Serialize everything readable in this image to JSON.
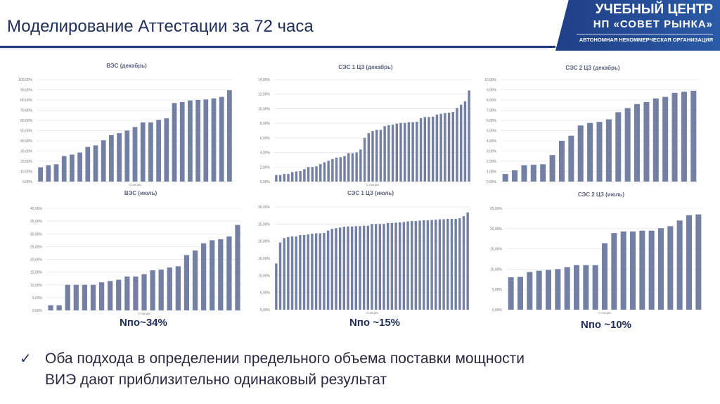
{
  "header": {
    "title": "Моделирование Аттестации за 72 часа"
  },
  "logo": {
    "line1": "УЧЕБНЫЙ ЦЕНТР",
    "line2": "НП «СОВЕТ РЫНКА»",
    "line3": "АВТОНОМНАЯ НЕКОММЕРЧЕСКАЯ ОРГАНИЗАЦИЯ"
  },
  "colors": {
    "bar": "#7480a3",
    "accent": "#1f3a7a",
    "grid": "#e3e6ee"
  },
  "labels": {
    "n1": "Nпо~34%",
    "n2": "Nпо ~15%",
    "n3": "Nпо ~10%"
  },
  "bottom": {
    "icon": "check-icon",
    "line1": "Оба подхода в определении предельного объема поставки мощности",
    "line2": "ВИЭ дают приблизительно одинаковый результат"
  },
  "chart_data": [
    {
      "type": "bar",
      "title": "ВЭС (декабрь)",
      "xlabel": "Станции",
      "ylabel": "",
      "ylim": [
        0,
        100
      ],
      "ystep": 10,
      "grid": true,
      "values": [
        14,
        16,
        17,
        25,
        26.5,
        28.5,
        34,
        35.5,
        40.5,
        45.5,
        47.5,
        50,
        53.5,
        58,
        58,
        60.5,
        62,
        77,
        78,
        79.5,
        80,
        80.5,
        81.5,
        83,
        89.5
      ]
    },
    {
      "type": "bar",
      "title": "СЭС 1 ЦЗ (декабрь)",
      "xlabel": "Станции",
      "ylabel": "",
      "ylim": [
        0,
        14
      ],
      "ystep": 2,
      "grid": true,
      "values": [
        0.9,
        0.9,
        1.05,
        1.05,
        1.3,
        1.4,
        1.45,
        1.7,
        2.0,
        2.0,
        2.1,
        2.4,
        2.65,
        2.85,
        3.1,
        3.3,
        3.35,
        3.5,
        3.9,
        3.9,
        4.0,
        4.4,
        6.0,
        6.65,
        6.95,
        7.1,
        7.1,
        7.6,
        7.75,
        7.8,
        7.95,
        8.05,
        8.05,
        8.15,
        8.15,
        8.2,
        8.7,
        8.85,
        8.85,
        8.9,
        9.2,
        9.3,
        9.4,
        9.45,
        9.55,
        10.1,
        10.55,
        11.0,
        12.5
      ]
    },
    {
      "type": "bar",
      "title": "СЭС 2 ЦЗ (декабрь)",
      "xlabel": "",
      "ylabel": "",
      "ylim": [
        0,
        10
      ],
      "ystep": 1,
      "grid": true,
      "values": [
        0.75,
        1.1,
        1.6,
        1.65,
        1.7,
        2.6,
        4.0,
        4.5,
        5.5,
        5.75,
        5.85,
        6.1,
        6.8,
        7.2,
        7.6,
        7.8,
        8.15,
        8.3,
        8.7,
        8.8,
        8.9
      ]
    },
    {
      "type": "bar",
      "title": "ВЭС (июль)",
      "xlabel": "Станции",
      "ylabel": "",
      "ylim": [
        0,
        40
      ],
      "ystep": 5,
      "grid": true,
      "values": [
        2,
        2,
        10,
        10,
        10,
        10,
        11,
        11.5,
        12,
        13.3,
        13.3,
        14.2,
        15.7,
        16,
        16.8,
        17.3,
        21.7,
        23.5,
        26.3,
        27.5,
        27.9,
        29,
        33.5
      ]
    },
    {
      "type": "bar",
      "title": "СЭС 1 ЦЗ (июль)",
      "xlabel": "Станции",
      "ylabel": "",
      "ylim": [
        0,
        30
      ],
      "ystep": 5,
      "grid": true,
      "values": [
        13.5,
        19.6,
        20.9,
        21.2,
        21.4,
        21.4,
        21.8,
        21.8,
        22.0,
        22.2,
        22.3,
        22.3,
        22.4,
        23.1,
        23.6,
        23.8,
        24.0,
        24.2,
        24.3,
        24.3,
        24.4,
        24.4,
        24.5,
        24.5,
        25.0,
        25.0,
        25.0,
        25.0,
        25.3,
        25.3,
        25.4,
        25.5,
        25.6,
        25.8,
        25.9,
        25.9,
        26.0,
        26.1,
        26.1,
        26.2,
        26.3,
        26.4,
        26.4,
        26.5,
        26.5,
        26.5,
        26.7,
        27.3,
        28.4
      ]
    },
    {
      "type": "bar",
      "title": "СЭС 2 ЦЗ (июль)",
      "xlabel": "Станции",
      "ylabel": "",
      "ylim": [
        0,
        25
      ],
      "ystep": 5,
      "grid": true,
      "values": [
        8.0,
        8.1,
        9.3,
        9.6,
        9.8,
        10.0,
        10.5,
        11.0,
        11.0,
        11.0,
        16.4,
        18.9,
        19.3,
        19.3,
        19.5,
        19.5,
        20.1,
        20.6,
        22.0,
        23.3,
        23.5
      ]
    }
  ]
}
